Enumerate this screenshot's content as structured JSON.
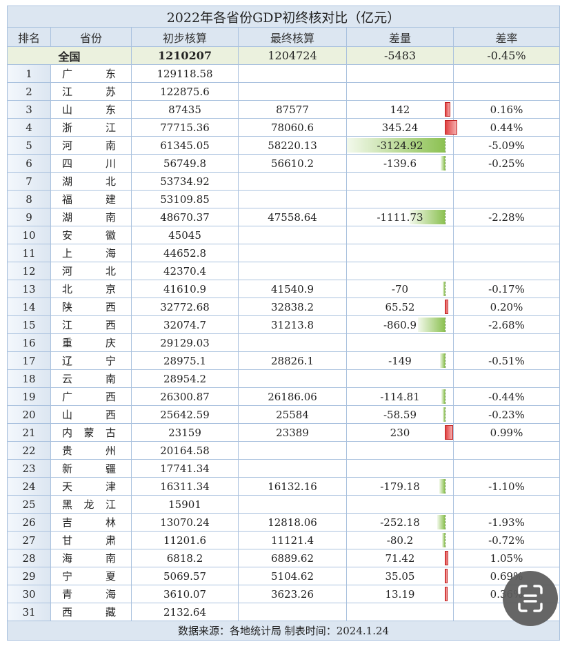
{
  "title": "2022年各省份GDP初终核对比（亿元）",
  "headers": [
    "排名",
    "省份",
    "初步核算",
    "最终核算",
    "差量",
    "差率"
  ],
  "national": {
    "name": "全国",
    "initial": "1210207",
    "final": "1204724",
    "diff": "-5483",
    "rate": "-0.45%"
  },
  "rows": [
    {
      "rank": "1",
      "province": "广东",
      "initial": "129118.58",
      "final": "",
      "diff": "",
      "rate": ""
    },
    {
      "rank": "2",
      "province": "江苏",
      "initial": "122875.6",
      "final": "",
      "diff": "",
      "rate": ""
    },
    {
      "rank": "3",
      "province": "山东",
      "initial": "87435",
      "final": "87577",
      "diff": "142",
      "rate": "0.16%"
    },
    {
      "rank": "4",
      "province": "浙江",
      "initial": "77715.36",
      "final": "78060.6",
      "diff": "345.24",
      "rate": "0.44%"
    },
    {
      "rank": "5",
      "province": "河南",
      "initial": "61345.05",
      "final": "58220.13",
      "diff": "-3124.92",
      "rate": "-5.09%"
    },
    {
      "rank": "6",
      "province": "四川",
      "initial": "56749.8",
      "final": "56610.2",
      "diff": "-139.6",
      "rate": "-0.25%"
    },
    {
      "rank": "7",
      "province": "湖北",
      "initial": "53734.92",
      "final": "",
      "diff": "",
      "rate": ""
    },
    {
      "rank": "8",
      "province": "福建",
      "initial": "53109.85",
      "final": "",
      "diff": "",
      "rate": ""
    },
    {
      "rank": "9",
      "province": "湖南",
      "initial": "48670.37",
      "final": "47558.64",
      "diff": "-1111.73",
      "rate": "-2.28%"
    },
    {
      "rank": "10",
      "province": "安徽",
      "initial": "45045",
      "final": "",
      "diff": "",
      "rate": ""
    },
    {
      "rank": "11",
      "province": "上海",
      "initial": "44652.8",
      "final": "",
      "diff": "",
      "rate": ""
    },
    {
      "rank": "12",
      "province": "河北",
      "initial": "42370.4",
      "final": "",
      "diff": "",
      "rate": ""
    },
    {
      "rank": "13",
      "province": "北京",
      "initial": "41610.9",
      "final": "41540.9",
      "diff": "-70",
      "rate": "-0.17%"
    },
    {
      "rank": "14",
      "province": "陕西",
      "initial": "32772.68",
      "final": "32838.2",
      "diff": "65.52",
      "rate": "0.20%"
    },
    {
      "rank": "15",
      "province": "江西",
      "initial": "32074.7",
      "final": "31213.8",
      "diff": "-860.9",
      "rate": "-2.68%"
    },
    {
      "rank": "16",
      "province": "重庆",
      "initial": "29129.03",
      "final": "",
      "diff": "",
      "rate": ""
    },
    {
      "rank": "17",
      "province": "辽宁",
      "initial": "28975.1",
      "final": "28826.1",
      "diff": "-149",
      "rate": "-0.51%"
    },
    {
      "rank": "18",
      "province": "云南",
      "initial": "28954.2",
      "final": "",
      "diff": "",
      "rate": ""
    },
    {
      "rank": "19",
      "province": "广西",
      "initial": "26300.87",
      "final": "26186.06",
      "diff": "-114.81",
      "rate": "-0.44%"
    },
    {
      "rank": "20",
      "province": "山西",
      "initial": "25642.59",
      "final": "25584",
      "diff": "-58.59",
      "rate": "-0.23%"
    },
    {
      "rank": "21",
      "province": "内蒙古",
      "initial": "23159",
      "final": "23389",
      "diff": "230",
      "rate": "0.99%"
    },
    {
      "rank": "22",
      "province": "贵州",
      "initial": "20164.58",
      "final": "",
      "diff": "",
      "rate": ""
    },
    {
      "rank": "23",
      "province": "新疆",
      "initial": "17741.34",
      "final": "",
      "diff": "",
      "rate": ""
    },
    {
      "rank": "24",
      "province": "天津",
      "initial": "16311.34",
      "final": "16132.16",
      "diff": "-179.18",
      "rate": "-1.10%"
    },
    {
      "rank": "25",
      "province": "黑龙江",
      "initial": "15901",
      "final": "",
      "diff": "",
      "rate": ""
    },
    {
      "rank": "26",
      "province": "吉林",
      "initial": "13070.24",
      "final": "12818.06",
      "diff": "-252.18",
      "rate": "-1.93%"
    },
    {
      "rank": "27",
      "province": "甘肃",
      "initial": "11201.6",
      "final": "11121.4",
      "diff": "-80.2",
      "rate": "-0.72%"
    },
    {
      "rank": "28",
      "province": "海南",
      "initial": "6818.2",
      "final": "6889.62",
      "diff": "71.42",
      "rate": "1.05%"
    },
    {
      "rank": "29",
      "province": "宁夏",
      "initial": "5069.57",
      "final": "5104.62",
      "diff": "35.05",
      "rate": "0.69%"
    },
    {
      "rank": "30",
      "province": "青海",
      "initial": "3610.07",
      "final": "3623.26",
      "diff": "13.19",
      "rate": "0.36%"
    },
    {
      "rank": "31",
      "province": "西藏",
      "initial": "2132.64",
      "final": "",
      "diff": "",
      "rate": ""
    }
  ],
  "footer": "数据来源：各地统计局  制表时间：2024.1.24",
  "colors": {
    "header_bg": "#dce6f1",
    "national_bg": "#ebf1de",
    "border": "#a9c1de",
    "bar_negative": "#8cc152",
    "bar_positive": "#e04040"
  },
  "overlay": {
    "icon": "scan-text-icon"
  }
}
